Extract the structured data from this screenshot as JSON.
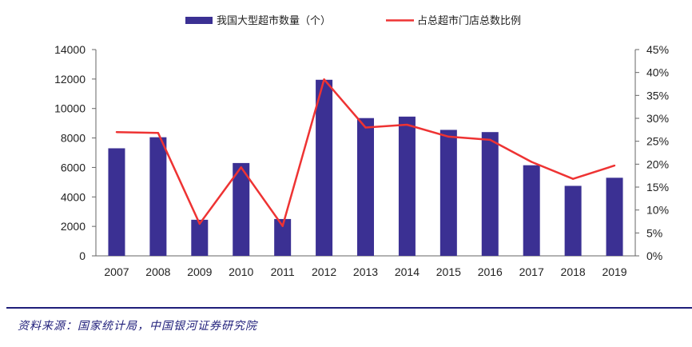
{
  "chart_data": {
    "type": "bar",
    "categories": [
      "2007",
      "2008",
      "2009",
      "2010",
      "2011",
      "2012",
      "2013",
      "2014",
      "2015",
      "2016",
      "2017",
      "2018",
      "2019"
    ],
    "series": [
      {
        "name": "我国大型超市数量（个）",
        "type": "bar",
        "axis": "left",
        "color": "#3b3093",
        "values": [
          7300,
          8050,
          2450,
          6300,
          2500,
          11950,
          9350,
          9450,
          8550,
          8400,
          6150,
          4750,
          5300
        ]
      },
      {
        "name": "占总超市门店总数比例",
        "type": "line",
        "axis": "right",
        "color": "#ee3333",
        "values": [
          0.27,
          0.268,
          0.07,
          0.193,
          0.065,
          0.385,
          0.28,
          0.286,
          0.26,
          0.253,
          0.205,
          0.168,
          0.197
        ]
      }
    ],
    "y_left": {
      "min": 0,
      "max": 14000,
      "ticks": [
        "0",
        "2000",
        "4000",
        "6000",
        "8000",
        "10000",
        "12000",
        "14000"
      ]
    },
    "y_right": {
      "min": 0,
      "max": 0.45,
      "ticks": [
        "0%",
        "5%",
        "10%",
        "15%",
        "20%",
        "25%",
        "30%",
        "35%",
        "40%",
        "45%"
      ]
    },
    "legend_position": "top",
    "grid": false
  },
  "source_text": "资料来源：国家统计局，中国银河证券研究院"
}
